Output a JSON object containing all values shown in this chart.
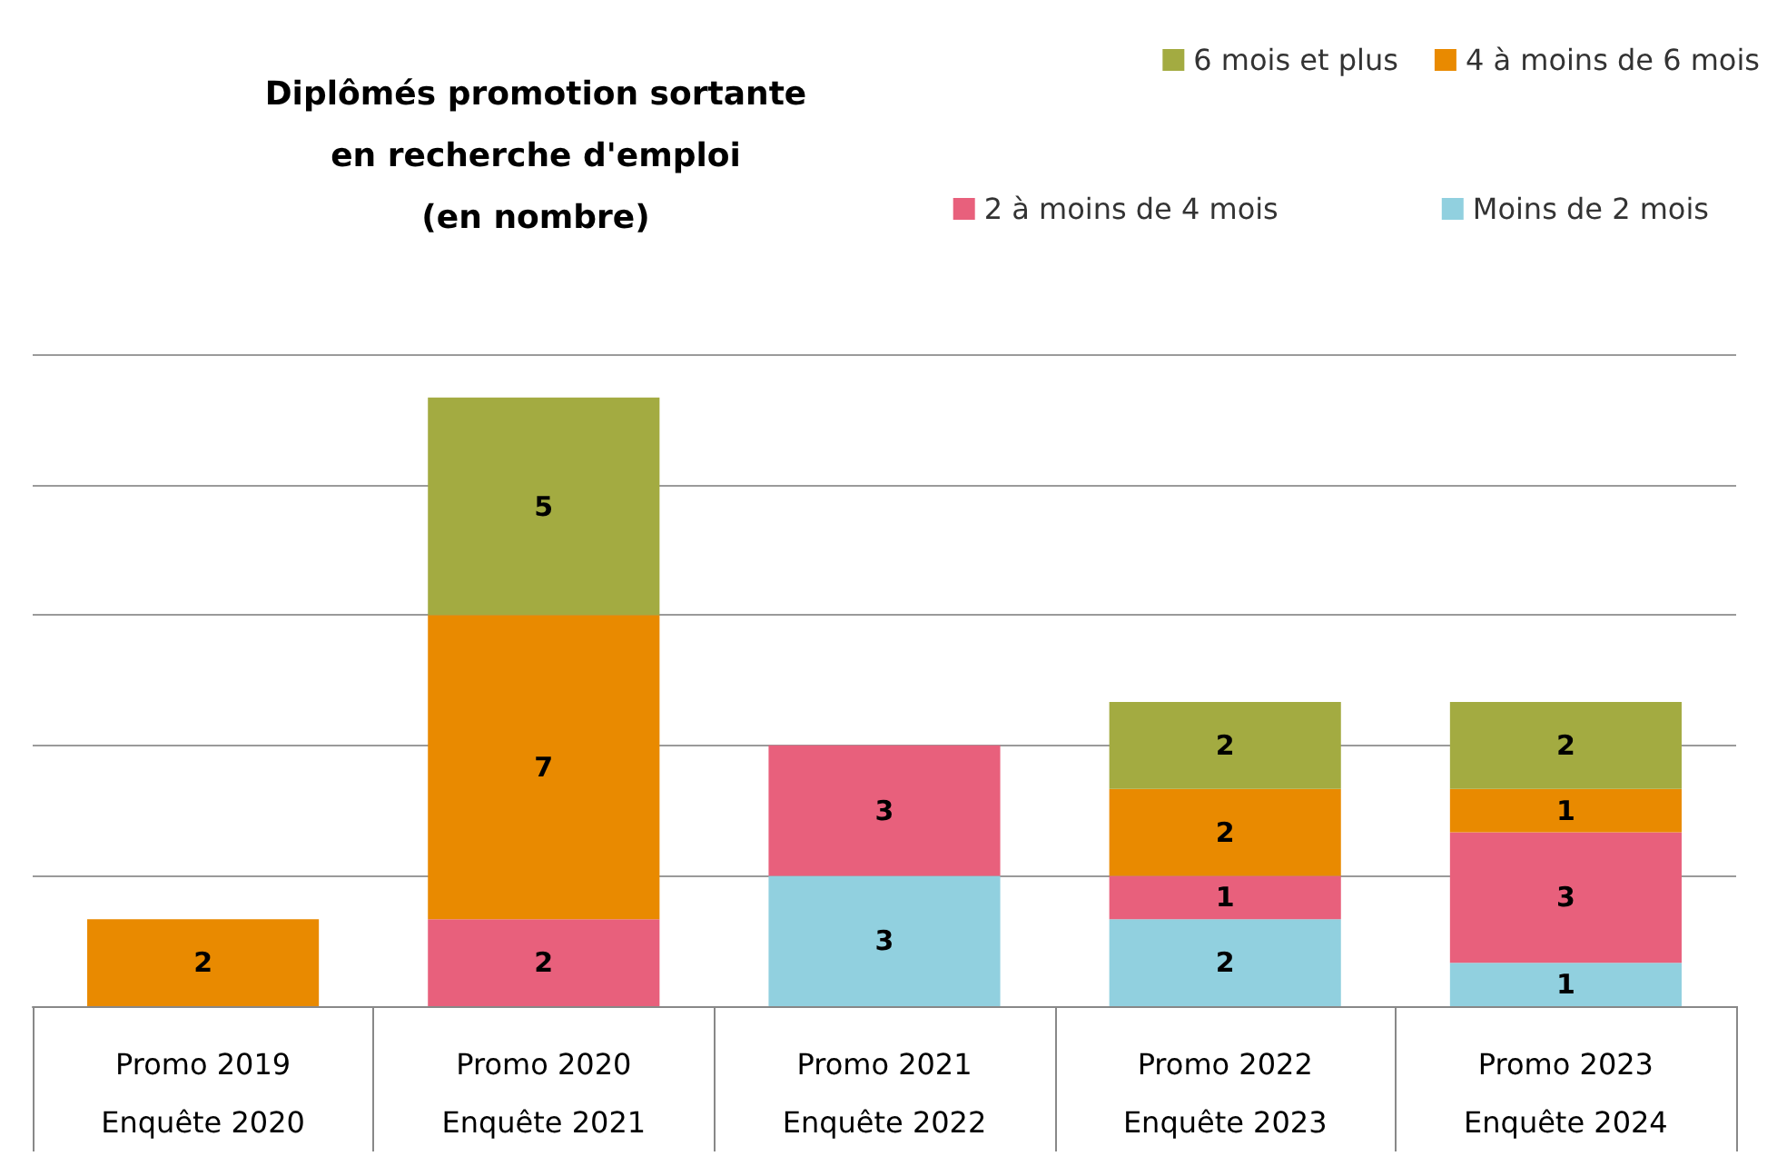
{
  "chart_data": {
    "type": "bar",
    "title": "Diplômés promotion sortante\nen recherche d'emploi\n(en nombre)",
    "categories": [
      "Promo 2019\nEnquête 2020",
      "Promo 2020\nEnquête 2021",
      "Promo 2021\nEnquête 2022",
      "Promo 2022\nEnquête 2023",
      "Promo 2023\nEnquête 2024"
    ],
    "stacked": true,
    "data_labels": true,
    "grid": "y",
    "legend": "top right",
    "tick_labels": "x",
    "series": [
      {
        "name": "Moins de 2 mois",
        "color": "#91d0df",
        "values": [
          null,
          null,
          3,
          2,
          1
        ]
      },
      {
        "name": "2 à moins de 4 mois",
        "color": "#e8607c",
        "values": [
          null,
          2,
          3,
          1,
          3
        ]
      },
      {
        "name": "4 à moins de 6 mois",
        "color": "#e98a00",
        "values": [
          2,
          7,
          null,
          2,
          1
        ]
      },
      {
        "name": "6 mois et plus",
        "color": "#a3ab41",
        "values": [
          null,
          5,
          null,
          2,
          2
        ]
      }
    ]
  }
}
